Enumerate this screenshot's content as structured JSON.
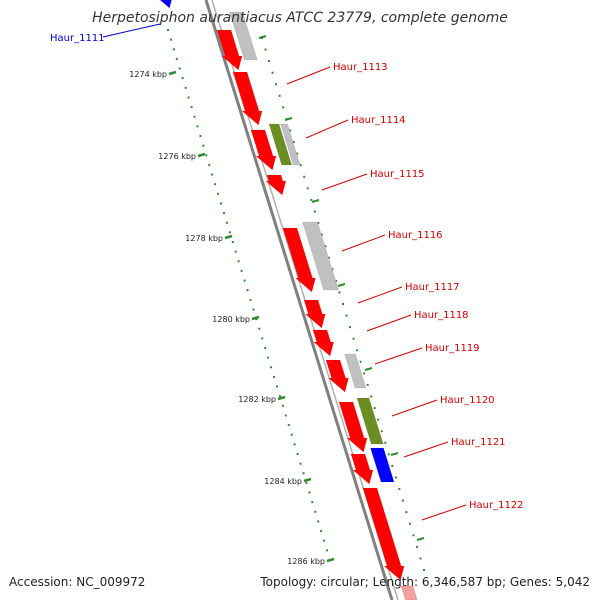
{
  "title": "Herpetosiphon aurantiacus ATCC 23779, complete genome",
  "footer": {
    "accession": "Accession: NC_009972",
    "summary": "Topology: circular; Length: 6,346,587 bp; Genes: 5,042"
  },
  "colors": {
    "cds": "#ff0000",
    "other": "#c0c0c0",
    "green": "#6b8e23",
    "blue": "#0000ff",
    "tick": "#2e8b2e",
    "backbone": "#808080",
    "label": "#cc0000",
    "label_blue": "#0000cc"
  },
  "ticks": [
    {
      "kbp": 1274,
      "label": "1274 kbp"
    },
    {
      "kbp": 1276,
      "label": "1276 kbp"
    },
    {
      "kbp": 1278,
      "label": "1278 kbp"
    },
    {
      "kbp": 1280,
      "label": "1280 kbp"
    },
    {
      "kbp": 1282,
      "label": "1282 kbp"
    },
    {
      "kbp": 1284,
      "label": "1284 kbp"
    },
    {
      "kbp": 1286,
      "label": "1286 kbp"
    }
  ],
  "genes": [
    {
      "name": "Haur_1111",
      "color": "blue"
    },
    {
      "name": "Haur_1113",
      "color": "red"
    },
    {
      "name": "Haur_1114",
      "color": "red"
    },
    {
      "name": "Haur_1115",
      "color": "red"
    },
    {
      "name": "Haur_1116",
      "color": "red"
    },
    {
      "name": "Haur_1117",
      "color": "red"
    },
    {
      "name": "Haur_1118",
      "color": "red"
    },
    {
      "name": "Haur_1119",
      "color": "red"
    },
    {
      "name": "Haur_1120",
      "color": "red"
    },
    {
      "name": "Haur_1121",
      "color": "red"
    },
    {
      "name": "Haur_1122",
      "color": "red"
    }
  ]
}
